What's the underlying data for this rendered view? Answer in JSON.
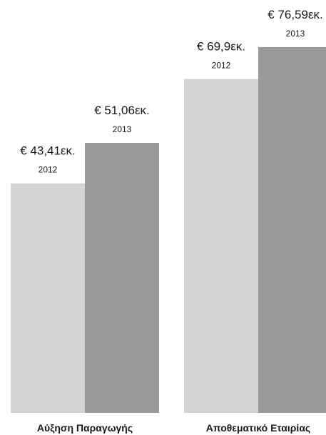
{
  "chart_data": {
    "type": "bar",
    "categories": [
      "Αύξηση Παραγωγής",
      "Αποθεματικό Εταιρίας"
    ],
    "series": [
      {
        "name": "2012",
        "values": [
          43.41,
          69.9
        ],
        "labels": [
          "€ 43,41εκ.",
          "€ 69,9εκ."
        ],
        "color": "#d3d3d3"
      },
      {
        "name": "2013",
        "values": [
          51.06,
          76.59
        ],
        "labels": [
          "€ 51,06εκ.",
          "€ 76,59εκ."
        ],
        "color": "#999999"
      }
    ],
    "title": "",
    "xlabel": "",
    "ylabel": "",
    "ylim": [
      0,
      76.59
    ],
    "grid": false,
    "legend": "none",
    "groups_independently_scaled": true
  }
}
